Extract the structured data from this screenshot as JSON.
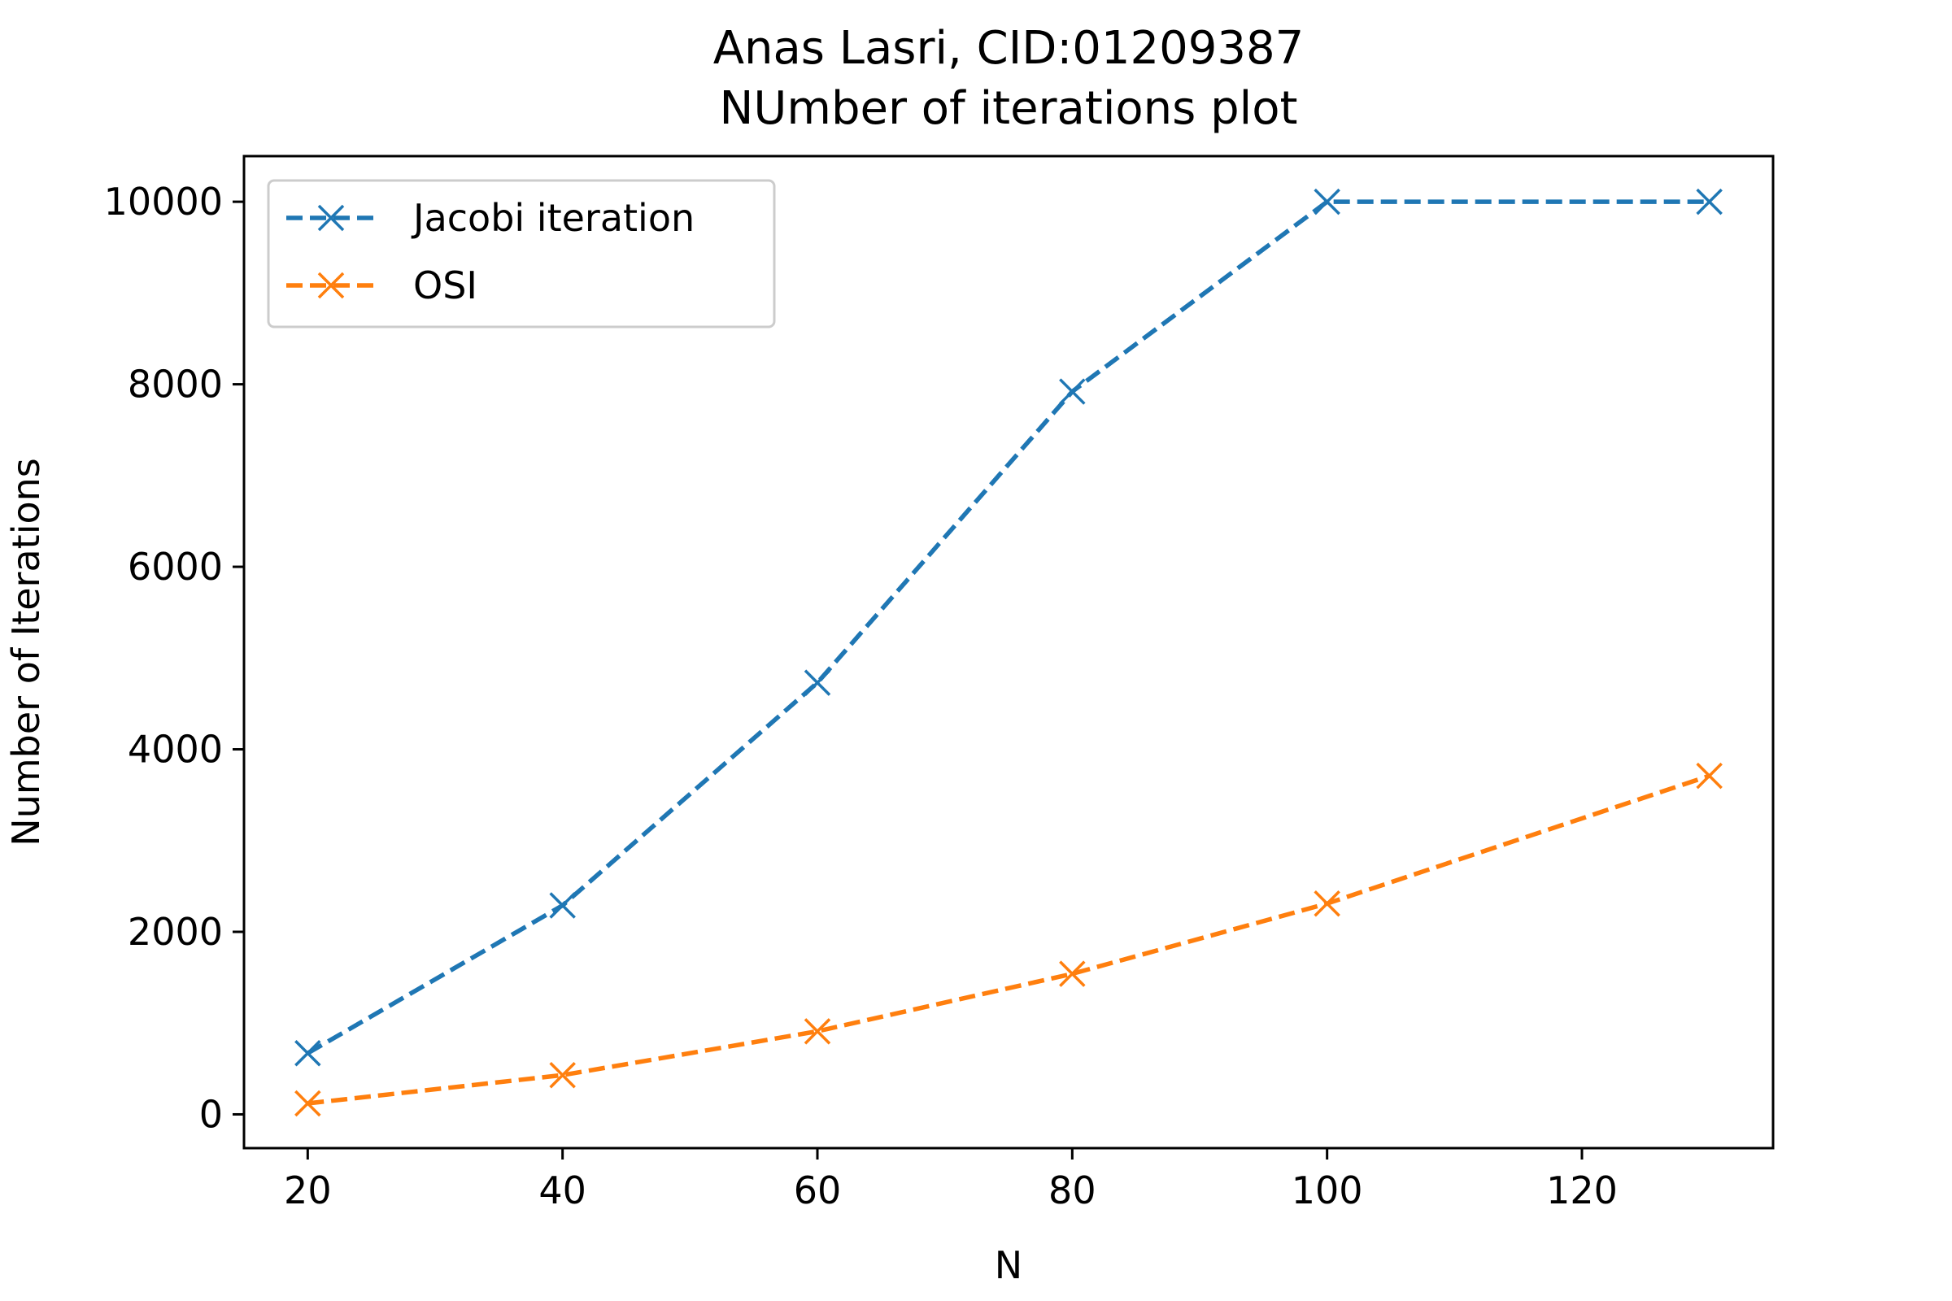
{
  "chart_data": {
    "type": "line",
    "title": "Anas Lasri, CID:01209387",
    "subtitle": "NUmber of iterations plot",
    "xlabel": "N",
    "ylabel": "Number of Iterations",
    "xlim": [
      15,
      135
    ],
    "ylim": [
      -370,
      10500
    ],
    "xticks": [
      20,
      40,
      60,
      80,
      100,
      120
    ],
    "yticks": [
      0,
      2000,
      4000,
      6000,
      8000,
      10000
    ],
    "grid": false,
    "legend_position": "upper-left",
    "x": [
      20,
      40,
      60,
      80,
      100,
      130
    ],
    "series": [
      {
        "name": "Jacobi iteration",
        "color": "#1f77b4",
        "line_style": "dashed",
        "marker": "x",
        "values": [
          670,
          2290,
          4730,
          7920,
          10000,
          10000
        ]
      },
      {
        "name": "OSI",
        "color": "#ff7f0e",
        "line_style": "dashed",
        "marker": "x",
        "values": [
          120,
          430,
          910,
          1540,
          2310,
          3710
        ]
      }
    ]
  }
}
